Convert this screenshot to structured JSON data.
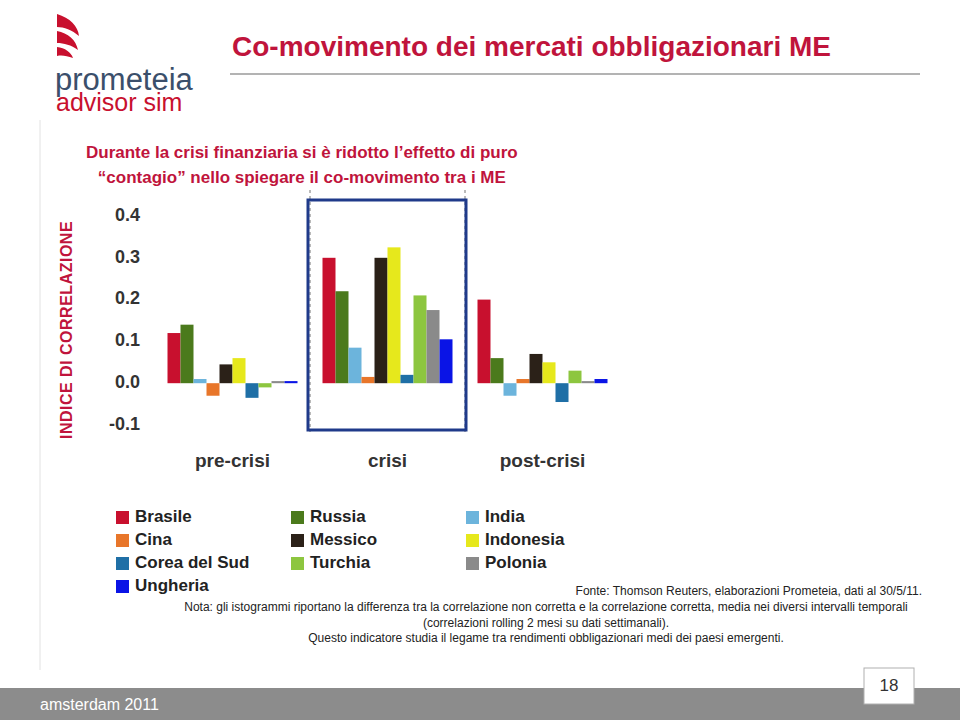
{
  "page": {
    "logo": [
      "prometeia",
      "advisor sim"
    ],
    "footer": "amsterdam 2011",
    "page_number": "18"
  },
  "chart_data": {
    "type": "bar",
    "title": "Co-movimento dei mercati obbligazionari ME",
    "subtitle": [
      "Durante la crisi finanziaria si è ridotto l’effetto di puro",
      "“contagio” nello spiegare il co-movimento tra i ME"
    ],
    "y_label": "INDICE DI CORRELAZIONE",
    "categories": [
      "pre-crisi",
      "crisi",
      "post-crisi"
    ],
    "series": [
      {
        "name": "Brasile",
        "color": "#c8102e",
        "values": [
          0.12,
          0.3,
          0.2
        ]
      },
      {
        "name": "Russia",
        "color": "#4b7a1c",
        "values": [
          0.14,
          0.22,
          0.06
        ]
      },
      {
        "name": "India",
        "color": "#6cb4dc",
        "values": [
          0.01,
          0.085,
          -0.03
        ]
      },
      {
        "name": "Cina",
        "color": "#e8762a",
        "values": [
          -0.03,
          0.015,
          0.01
        ]
      },
      {
        "name": "Messico",
        "color": "#2b2118",
        "values": [
          0.045,
          0.3,
          0.07
        ]
      },
      {
        "name": "Indonesia",
        "color": "#e6e81c",
        "values": [
          0.06,
          0.325,
          0.05
        ]
      },
      {
        "name": "Corea del Sud",
        "color": "#1f6fa6",
        "values": [
          -0.035,
          0.02,
          -0.045
        ]
      },
      {
        "name": "Turchia",
        "color": "#8dc63f",
        "values": [
          -0.01,
          0.21,
          0.03
        ]
      },
      {
        "name": "Polonia",
        "color": "#8a8a8a",
        "values": [
          0.005,
          0.175,
          0.005
        ]
      },
      {
        "name": "Ungheria",
        "color": "#0a14e6",
        "values": [
          0.005,
          0.105,
          0.01
        ]
      }
    ],
    "ylim": [
      -0.1,
      0.4
    ],
    "yticks": [
      -0.1,
      {
        "value": 0,
        "label": "0.0"
      },
      0.1,
      0.2,
      0.3,
      0.4
    ],
    "grid": false,
    "legend": "bottom",
    "source": "Fonte: Thomson Reuters, elaborazioni Prometeia, dati al 30/5/11.",
    "notes": [
      "Nota: gli istogrammi riportano la differenza tra la correlazione non corretta e la correlazione corretta, media nei diversi intervalli temporali (correlazioni rolling 2 mesi su dati settimanali).",
      "Questo indicatore studia il legame tra rendimenti obbligazionari medi dei paesi emergenti."
    ]
  }
}
